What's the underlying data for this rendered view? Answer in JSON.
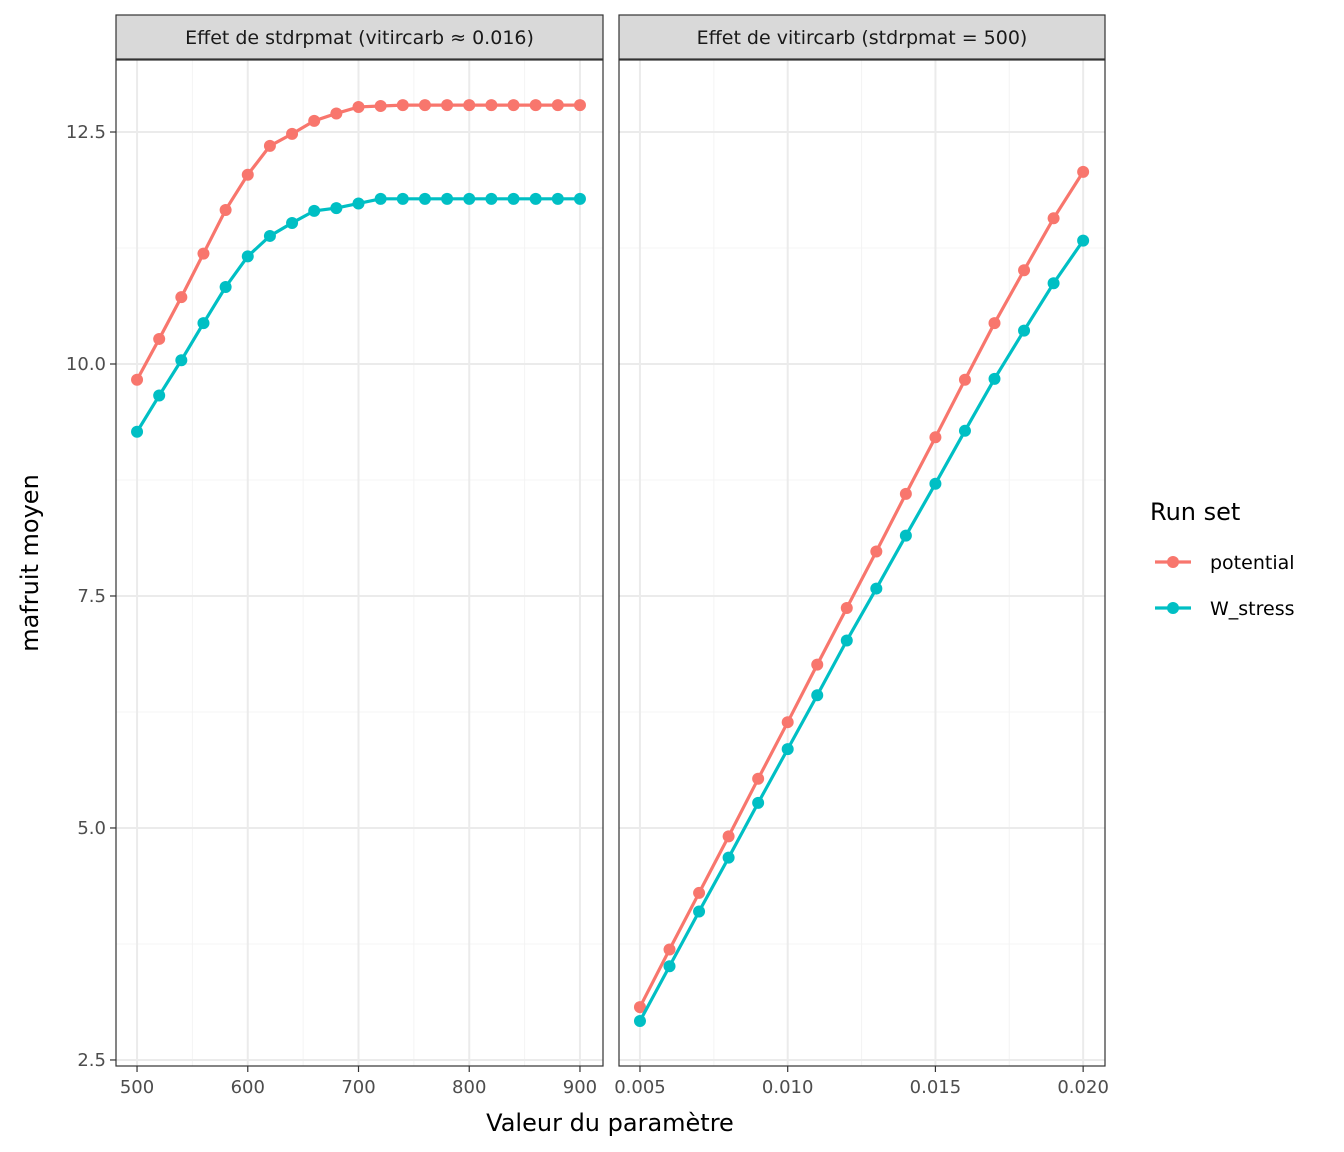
{
  "chart_data": {
    "type": "line",
    "ylabel": "mafruit moyen",
    "xlabel": "Valeur du paramètre",
    "ylim": [
      2.435,
      13.276
    ],
    "yticks": [
      2.5,
      5.0,
      7.5,
      10.0,
      12.5
    ],
    "ytick_labels": [
      "2.5",
      "5.0",
      "7.5",
      "10.0",
      "12.5"
    ],
    "legend": {
      "title": "Run set",
      "placement": "right",
      "entries": [
        {
          "name": "potential",
          "color": "#F8766D"
        },
        {
          "name": "W_stress",
          "color": "#00BFC4"
        }
      ]
    },
    "panels": [
      {
        "strip": "Effet de stdrpmat (vitircarb ≈ 0.016)",
        "xlim": [
          481,
          920.8
        ],
        "xticks": [
          500,
          600,
          700,
          800,
          900
        ],
        "xtick_labels": [
          "500",
          "600",
          "700",
          "800",
          "900"
        ],
        "xminor": [
          550,
          650,
          750,
          850
        ],
        "x": [
          500,
          520,
          540,
          560,
          580,
          600,
          620,
          640,
          660,
          680,
          700,
          720,
          740,
          760,
          780,
          800,
          820,
          840,
          860,
          880,
          900
        ],
        "series": [
          {
            "name": "potential",
            "values": [
              9.83,
              10.27,
              10.72,
              11.19,
              11.66,
              12.04,
              12.35,
              12.48,
              12.62,
              12.7,
              12.77,
              12.78,
              12.79,
              12.79,
              12.79,
              12.79,
              12.79,
              12.79,
              12.79,
              12.79,
              12.79
            ]
          },
          {
            "name": "W_stress",
            "values": [
              9.27,
              9.66,
              10.04,
              10.44,
              10.83,
              11.16,
              11.38,
              11.52,
              11.65,
              11.68,
              11.73,
              11.78,
              11.78,
              11.78,
              11.78,
              11.78,
              11.78,
              11.78,
              11.78,
              11.78,
              11.78
            ]
          }
        ]
      },
      {
        "strip": "Effet de vitircarb (stdrpmat = 500)",
        "xlim": [
          0.00429,
          0.02074
        ],
        "xticks": [
          0.005,
          0.01,
          0.015,
          0.02
        ],
        "xtick_labels": [
          "0.005",
          "0.010",
          "0.015",
          "0.020"
        ],
        "xminor": [
          0.0075,
          0.0125,
          0.0175
        ],
        "x": [
          0.005,
          0.006,
          0.007,
          0.008,
          0.009,
          0.01,
          0.011,
          0.012,
          0.013,
          0.014,
          0.015,
          0.016,
          0.017,
          0.018,
          0.019,
          0.02
        ],
        "series": [
          {
            "name": "potential",
            "values": [
              3.07,
              3.69,
              4.3,
              4.91,
              5.53,
              6.14,
              6.76,
              7.37,
              7.98,
              8.6,
              9.21,
              9.83,
              10.44,
              11.01,
              11.57,
              12.07
            ]
          },
          {
            "name": "W_stress",
            "values": [
              2.92,
              3.51,
              4.1,
              4.68,
              5.27,
              5.85,
              6.43,
              7.02,
              7.58,
              8.15,
              8.71,
              9.28,
              9.84,
              10.36,
              10.87,
              11.33
            ]
          }
        ]
      }
    ]
  }
}
